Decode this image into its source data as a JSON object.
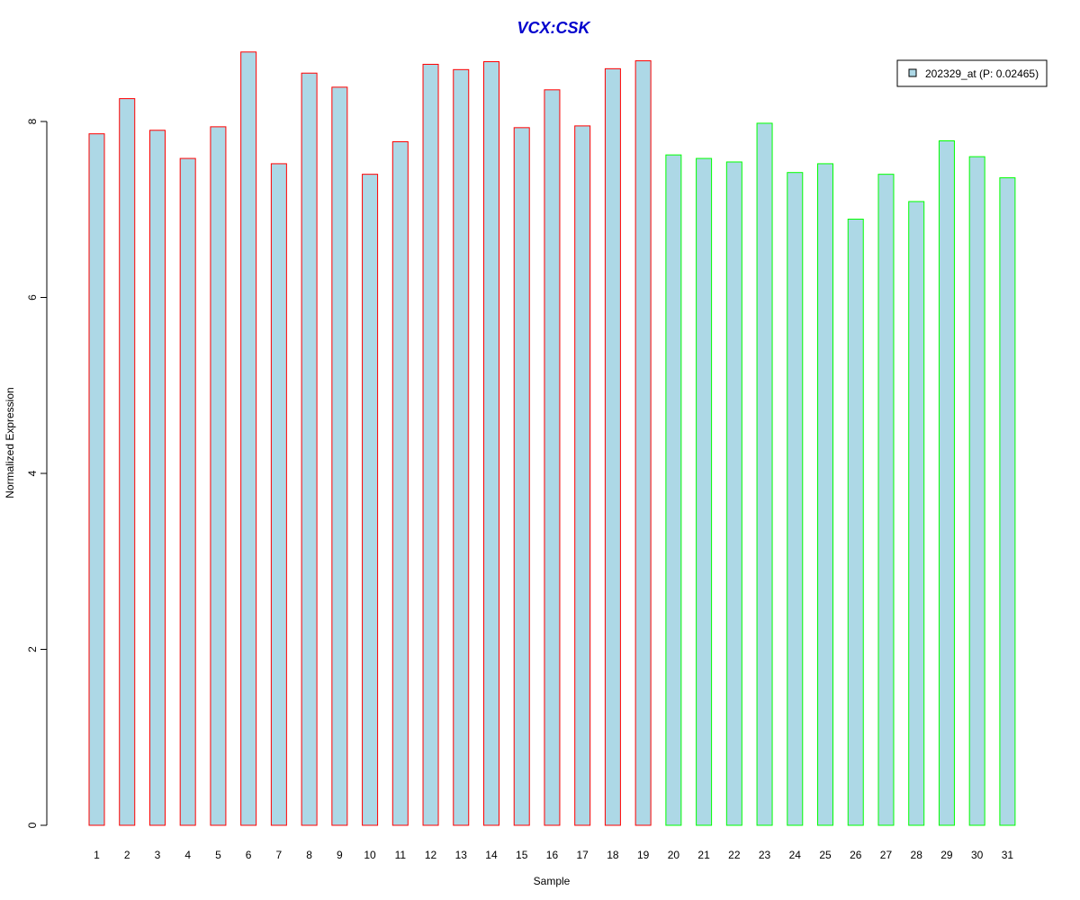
{
  "chart_data": {
    "type": "bar",
    "title": "VCX:CSK",
    "xlabel": "Sample",
    "ylabel": "Normalized Expression",
    "categories": [
      "1",
      "2",
      "3",
      "4",
      "5",
      "6",
      "7",
      "8",
      "9",
      "10",
      "11",
      "12",
      "13",
      "14",
      "15",
      "16",
      "17",
      "18",
      "19",
      "20",
      "21",
      "22",
      "23",
      "24",
      "25",
      "26",
      "27",
      "28",
      "29",
      "30",
      "31"
    ],
    "values": [
      7.86,
      8.26,
      7.9,
      7.58,
      7.94,
      8.79,
      7.52,
      8.55,
      8.39,
      7.4,
      7.77,
      8.65,
      8.59,
      8.68,
      7.93,
      8.36,
      7.95,
      8.6,
      8.69,
      7.62,
      7.58,
      7.54,
      7.98,
      7.42,
      7.52,
      6.89,
      7.4,
      7.09,
      7.78,
      7.6,
      7.36
    ],
    "groups": [
      1,
      1,
      1,
      1,
      1,
      1,
      1,
      1,
      1,
      1,
      1,
      1,
      1,
      1,
      1,
      1,
      1,
      1,
      1,
      2,
      2,
      2,
      2,
      2,
      2,
      2,
      2,
      2,
      2,
      2,
      2
    ],
    "yticks": [
      0,
      2,
      4,
      6,
      8
    ],
    "ylim": [
      0,
      8.8
    ],
    "legend": {
      "label": "202329_at (P: 0.02465)",
      "position": "top-right"
    },
    "colors": {
      "bar_fill": "#add8e6",
      "group1_border": "#ff0000",
      "group2_border": "#00ff00",
      "title": "#0000cd"
    }
  }
}
